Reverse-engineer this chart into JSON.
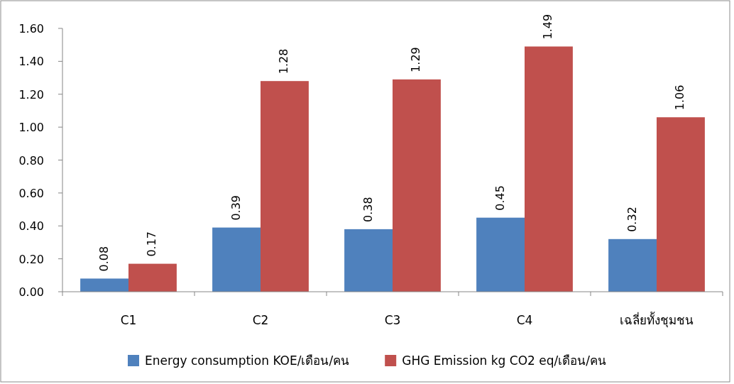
{
  "chart_data": {
    "type": "bar",
    "categories": [
      "C1",
      "C2",
      "C3",
      "C4",
      "เฉลี่ยทั้งชุมชน"
    ],
    "series": [
      {
        "name": "Energy consumption KOE/เดือน/คน",
        "color": "#4f81bd",
        "values": [
          0.08,
          0.39,
          0.38,
          0.45,
          0.32
        ]
      },
      {
        "name": "GHG Emission kg CO2 eq/เดือน/คน",
        "color": "#c0504d",
        "values": [
          0.17,
          1.28,
          1.29,
          1.49,
          1.06
        ]
      }
    ],
    "ylim": [
      0,
      1.6
    ],
    "yticks": [
      {
        "value": 0,
        "label": "0.00"
      },
      {
        "value": 0.2,
        "label": "0.20"
      },
      {
        "value": 0.4,
        "label": "0.40"
      },
      {
        "value": 0.6,
        "label": "0.60"
      },
      {
        "value": 0.8,
        "label": "0.80"
      },
      {
        "value": 1.0,
        "label": "1.00"
      },
      {
        "value": 1.2,
        "label": "1.20"
      },
      {
        "value": 1.4,
        "label": "1.40"
      },
      {
        "value": 1.6,
        "label": "1.60"
      }
    ],
    "data_labels": true,
    "legend": "bottom",
    "grid": false
  }
}
